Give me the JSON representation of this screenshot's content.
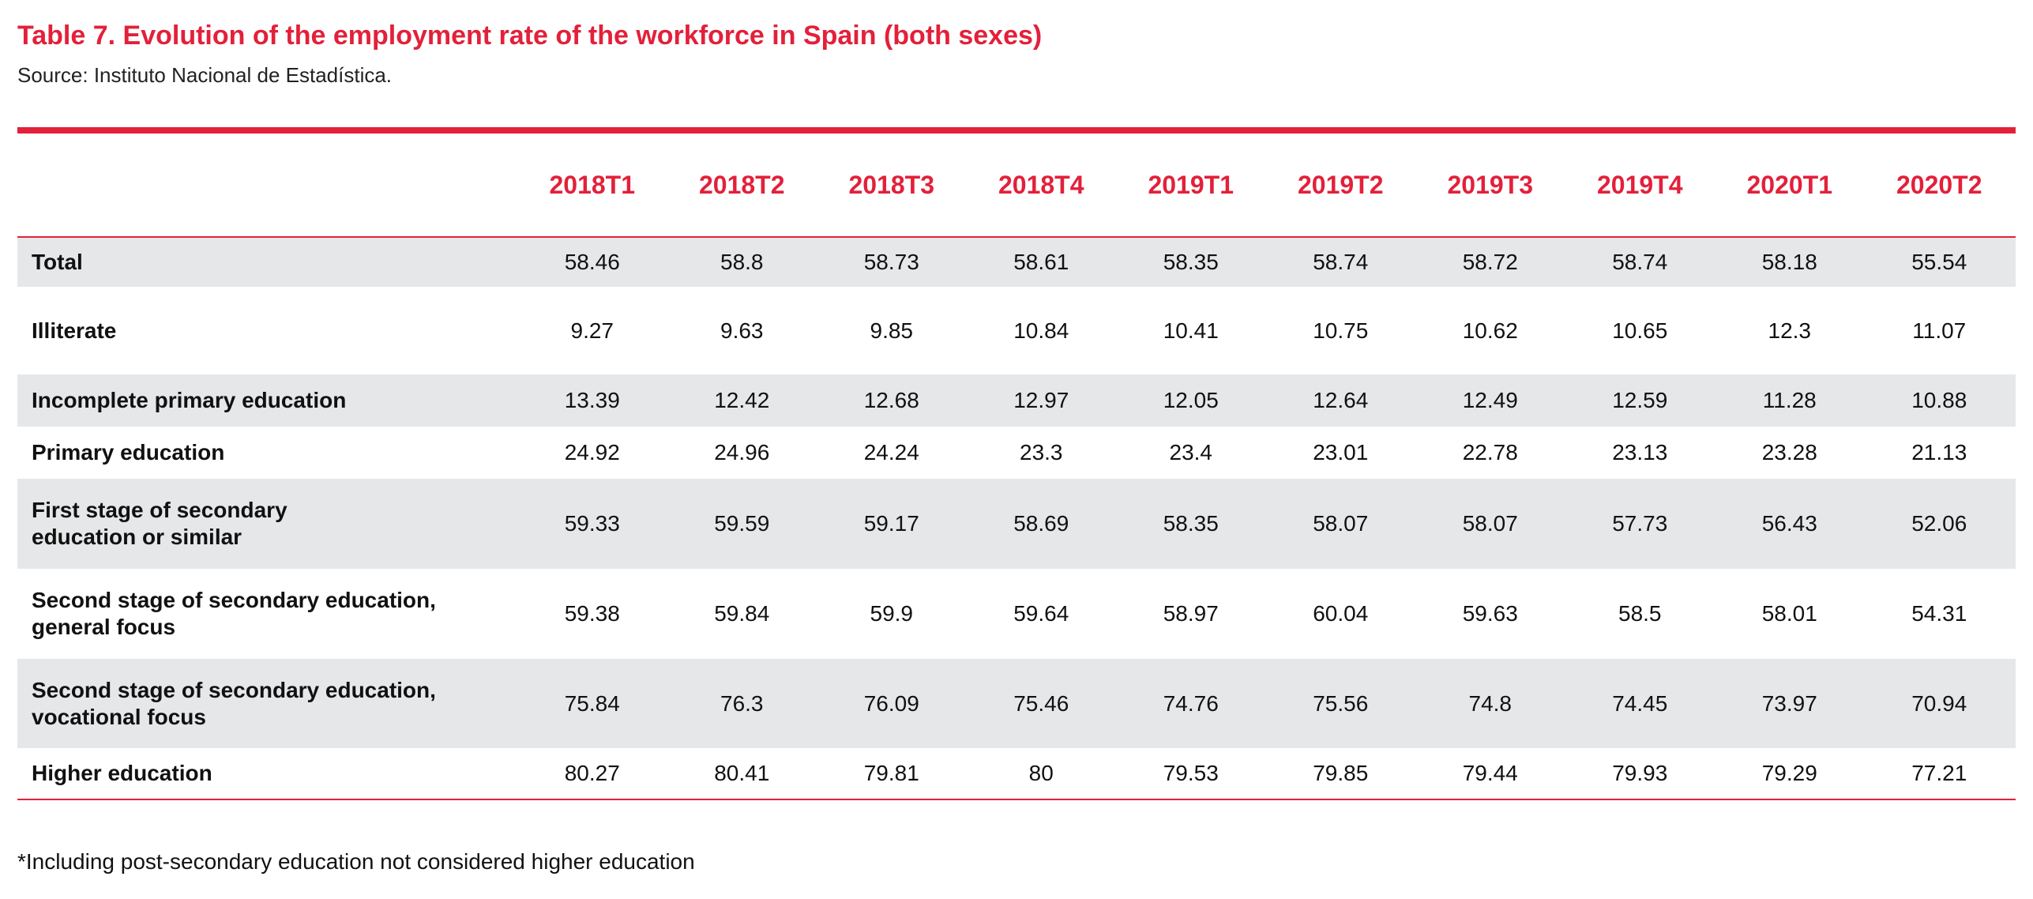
{
  "header": {
    "title": "Table 7. Evolution of the employment rate of the workforce in Spain (both sexes)",
    "source": "Source: Instituto Nacional de Estadística."
  },
  "table": {
    "columns": [
      "2018T1",
      "2018T2",
      "2018T3",
      "2018T4",
      "2019T1",
      "2019T2",
      "2019T3",
      "2019T4",
      "2020T1",
      "2020T2"
    ],
    "rows": [
      {
        "label": "Total",
        "values": [
          58.46,
          58.8,
          58.73,
          58.61,
          58.35,
          58.74,
          58.72,
          58.74,
          58.18,
          55.54
        ]
      },
      {
        "label": "Illiterate",
        "values": [
          9.27,
          9.63,
          9.85,
          10.84,
          10.41,
          10.75,
          10.62,
          10.65,
          12.3,
          11.07
        ]
      },
      {
        "label": "Incomplete primary education",
        "values": [
          13.39,
          12.42,
          12.68,
          12.97,
          12.05,
          12.64,
          12.49,
          12.59,
          11.28,
          10.88
        ]
      },
      {
        "label": "Primary education",
        "values": [
          24.92,
          24.96,
          24.24,
          23.3,
          23.4,
          23.01,
          22.78,
          23.13,
          23.28,
          21.13
        ]
      },
      {
        "label": "First stage of secondary\neducation or similar",
        "values": [
          59.33,
          59.59,
          59.17,
          58.69,
          58.35,
          58.07,
          58.07,
          57.73,
          56.43,
          52.06
        ]
      },
      {
        "label": "Second stage of secondary education,\ngeneral focus",
        "values": [
          59.38,
          59.84,
          59.9,
          59.64,
          58.97,
          60.04,
          59.63,
          58.5,
          58.01,
          54.31
        ]
      },
      {
        "label": "Second stage of secondary education,\nvocational focus",
        "values": [
          75.84,
          76.3,
          76.09,
          75.46,
          74.76,
          75.56,
          74.8,
          74.45,
          73.97,
          70.94
        ]
      },
      {
        "label": "Higher education",
        "values": [
          80.27,
          80.41,
          79.81,
          80,
          79.53,
          79.85,
          79.44,
          79.93,
          79.29,
          77.21
        ]
      }
    ]
  },
  "footnote": "*Including post-secondary education not considered higher education"
}
